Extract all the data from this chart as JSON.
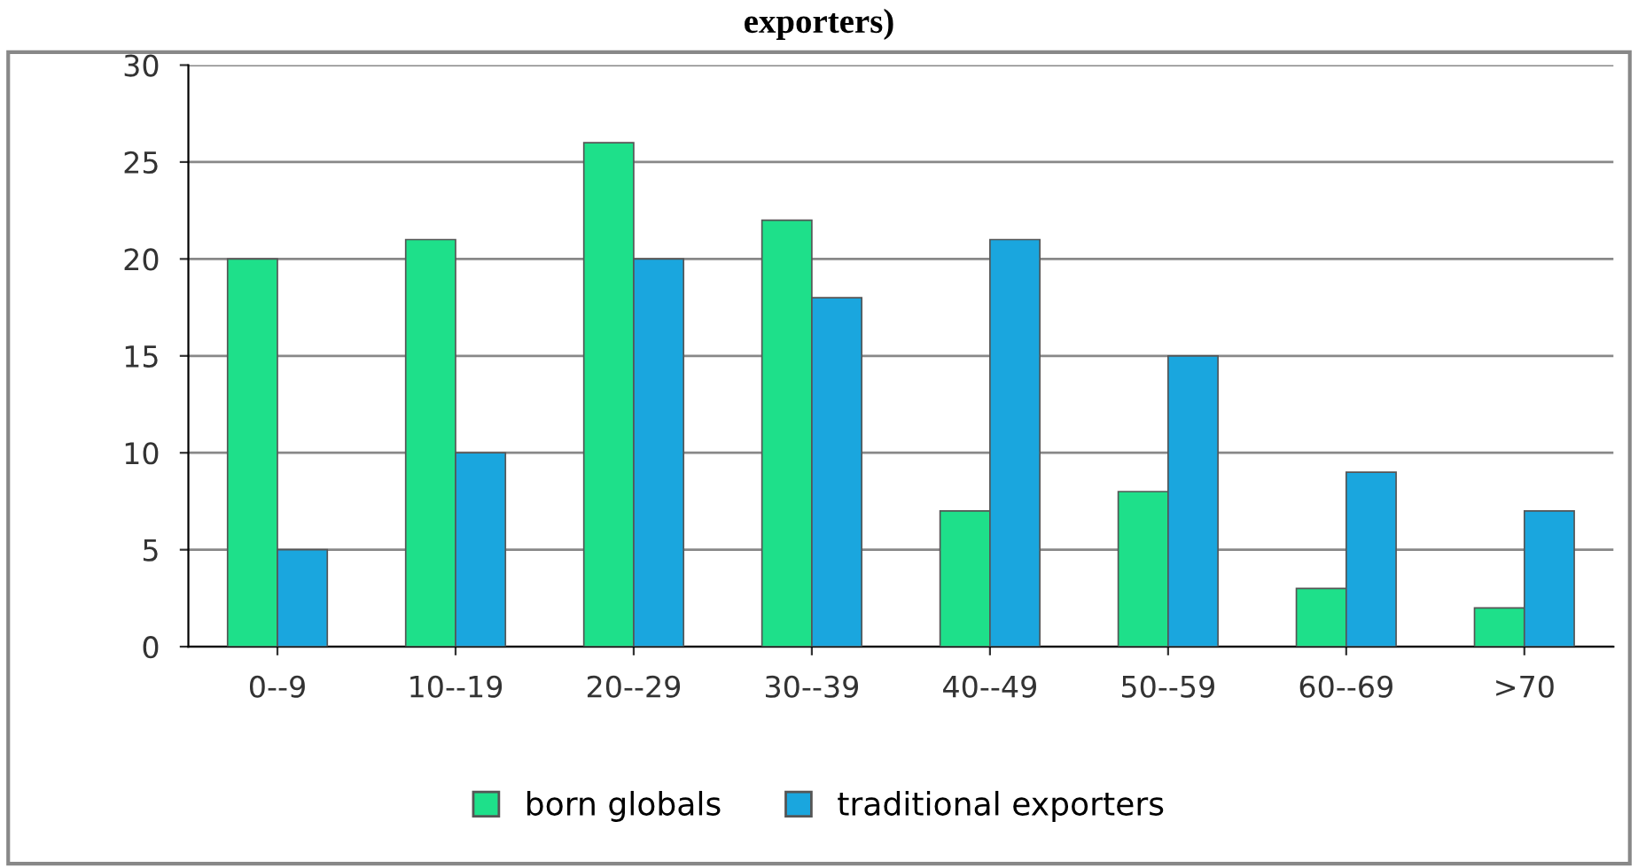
{
  "chart_data": {
    "type": "bar",
    "title": "exporters)",
    "categories": [
      "0--9",
      "10--19",
      "20--29",
      "30--39",
      "40--49",
      "50--59",
      "60--69",
      ">70"
    ],
    "series": [
      {
        "name": "born globals",
        "color": "#1ee08a",
        "values": [
          20,
          21,
          26,
          22,
          7,
          8,
          3,
          2
        ]
      },
      {
        "name": "traditional exporters",
        "color": "#1aa6de",
        "values": [
          5,
          10,
          20,
          18,
          21,
          15,
          9,
          7
        ]
      }
    ],
    "ylim": [
      0,
      30
    ],
    "yticks": [
      0,
      5,
      10,
      15,
      20,
      25,
      30
    ],
    "grid": "y",
    "legend": "bottom"
  }
}
